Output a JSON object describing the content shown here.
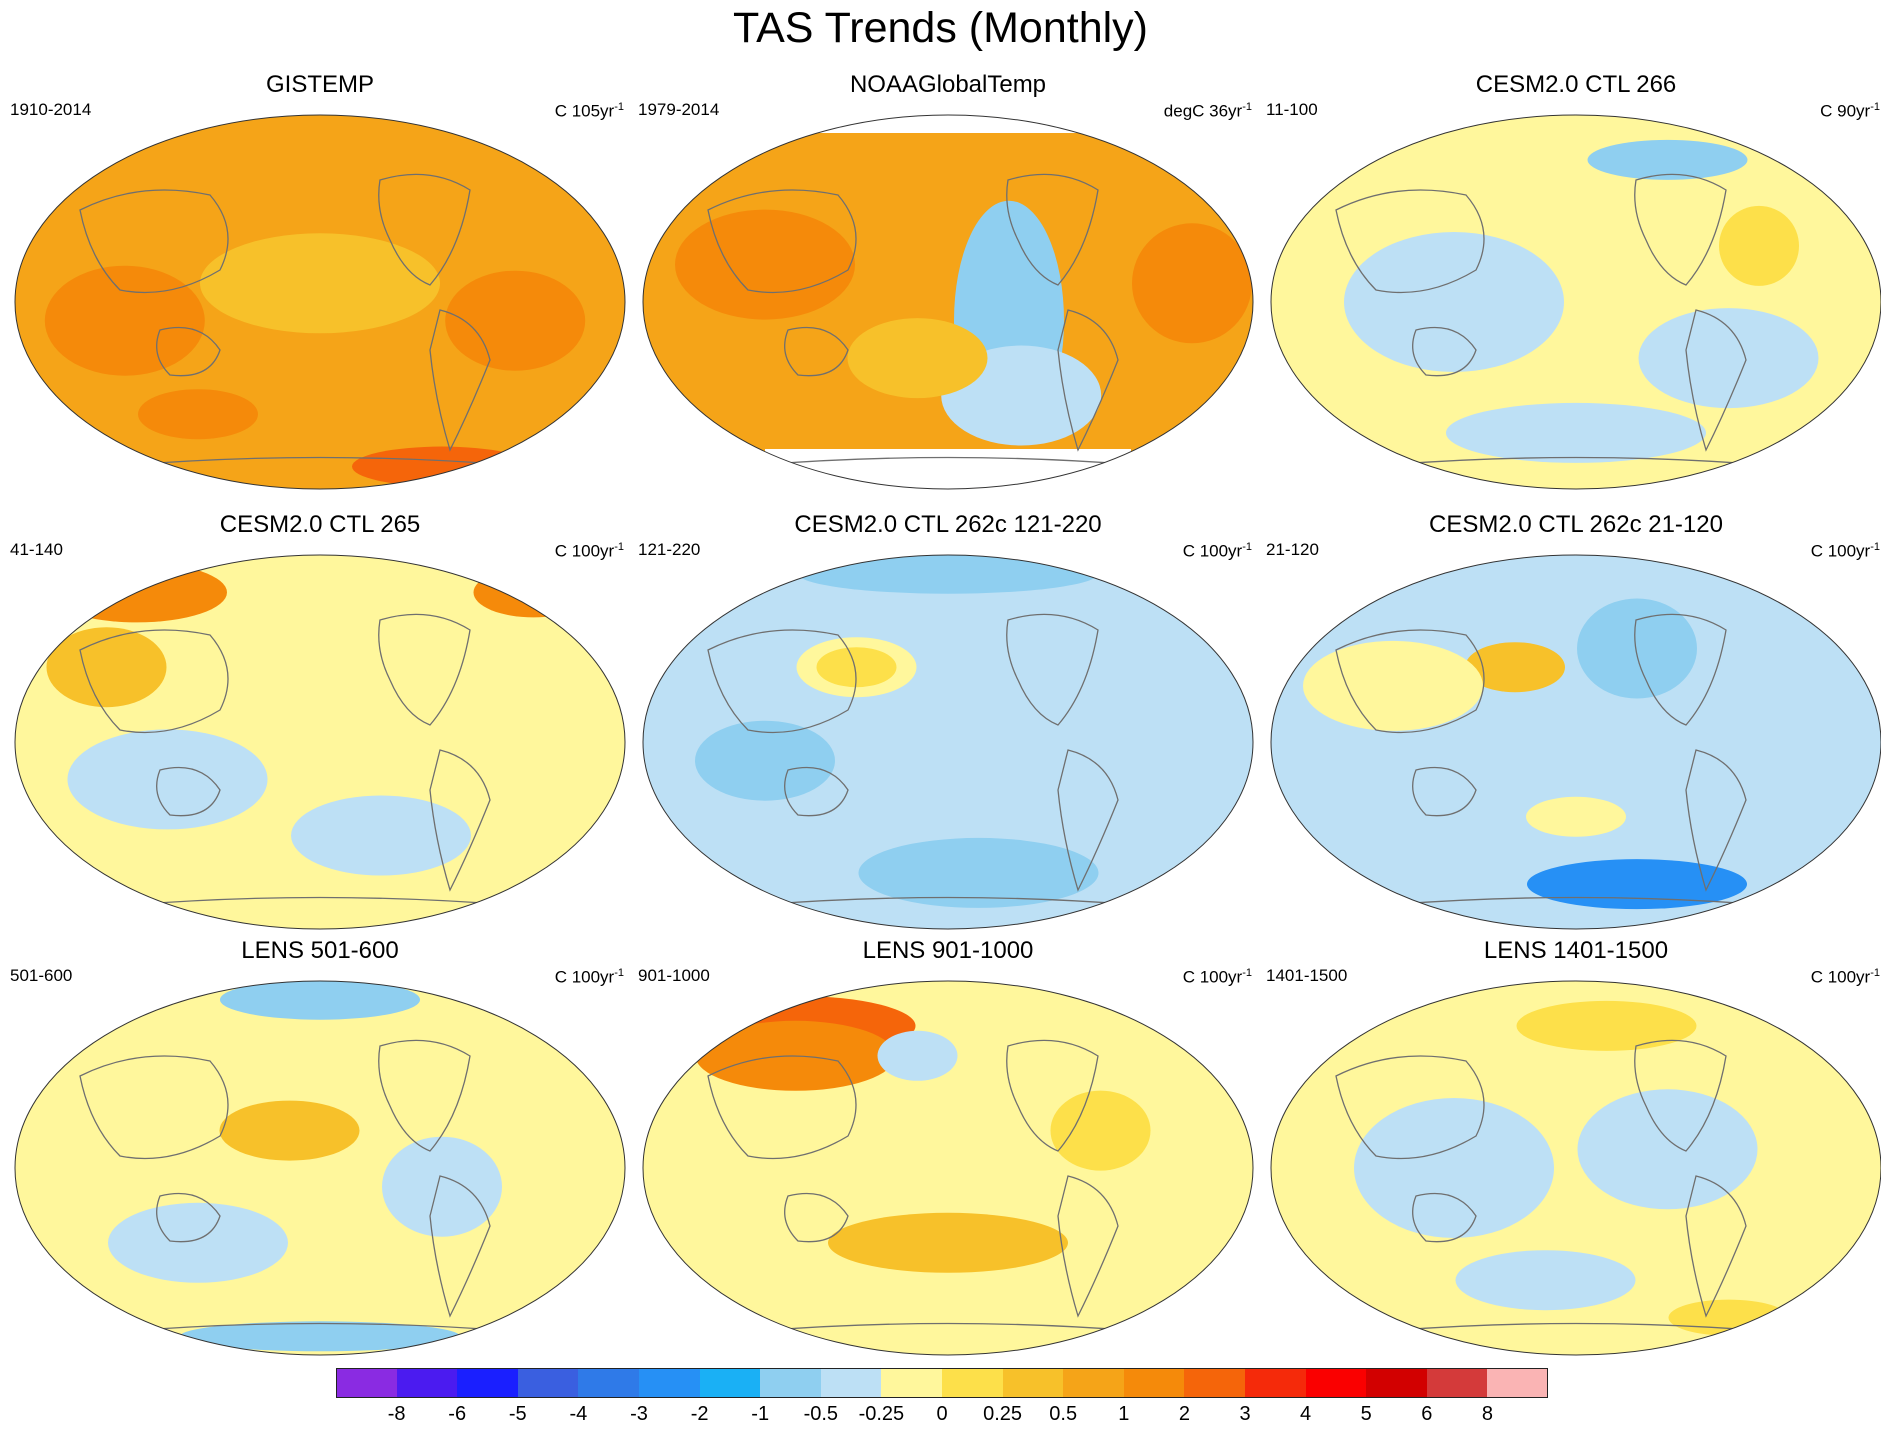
{
  "figure": {
    "title": "TAS Trends (Monthly)"
  },
  "panels": [
    {
      "title": "GISTEMP",
      "period": "1910-2014",
      "unit": "C 105yr",
      "exp": "-1",
      "base": "#f5a418",
      "missing": true
    },
    {
      "title": "NOAAGlobalTemp",
      "period": "1979-2014",
      "unit": "degC 36yr",
      "exp": "-1",
      "base": "#f5a418",
      "missing": true
    },
    {
      "title": "CESM2.0 CTL 266",
      "period": "11-100",
      "unit": "C 90yr",
      "exp": "-1",
      "base": "#fff79c",
      "missing": false
    },
    {
      "title": "CESM2.0 CTL 265",
      "period": "41-140",
      "unit": "C 100yr",
      "exp": "-1",
      "base": "#fff79c",
      "missing": false
    },
    {
      "title": "CESM2.0 CTL 262c 121-220",
      "period": "121-220",
      "unit": "C 100yr",
      "exp": "-1",
      "base": "#bde0f5",
      "missing": false
    },
    {
      "title": "CESM2.0 CTL 262c 21-120",
      "period": "21-120",
      "unit": "C 100yr",
      "exp": "-1",
      "base": "#bde0f5",
      "missing": false
    },
    {
      "title": "LENS 501-600",
      "period": "501-600",
      "unit": "C 100yr",
      "exp": "-1",
      "base": "#fff79c",
      "missing": false
    },
    {
      "title": "LENS 901-1000",
      "period": "901-1000",
      "unit": "C 100yr",
      "exp": "-1",
      "base": "#fff79c",
      "missing": false
    },
    {
      "title": "LENS 1401-1500",
      "period": "1401-1500",
      "unit": "C 100yr",
      "exp": "-1",
      "base": "#fff79c",
      "missing": false
    }
  ],
  "colorbar": {
    "colors": [
      "#8a2be2",
      "#4b1bf0",
      "#1a1fff",
      "#3a5fe0",
      "#2f7ae8",
      "#2690f5",
      "#1ab0f5",
      "#8fcff0",
      "#bde0f5",
      "#fff79c",
      "#fde04a",
      "#f7c12a",
      "#f5a418",
      "#f58a0a",
      "#f5650a",
      "#f52a0a",
      "#fa0000",
      "#d20000",
      "#d43a3a",
      "#fab4b4"
    ],
    "labels": [
      "-8",
      "-6",
      "-5",
      "-4",
      "-3",
      "-2",
      "-1",
      "-0.5",
      "-0.25",
      "0",
      "0.25",
      "0.5",
      "1",
      "2",
      "3",
      "4",
      "5",
      "6",
      "8"
    ]
  }
}
